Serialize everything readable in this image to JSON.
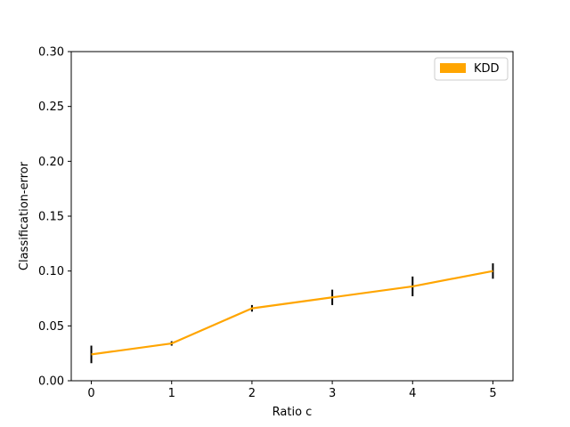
{
  "chart_data": {
    "type": "line",
    "title": "",
    "xlabel": "Ratio c",
    "ylabel": "Classification-error",
    "xlim": [
      -0.25,
      5.25
    ],
    "ylim": [
      0,
      0.3
    ],
    "x_ticks": [
      "0",
      "1",
      "2",
      "3",
      "4",
      "5"
    ],
    "y_ticks": [
      "0.00",
      "0.05",
      "0.10",
      "0.15",
      "0.20",
      "0.25",
      "0.30"
    ],
    "grid": false,
    "legend_position": "top-right",
    "series": [
      {
        "name": "KDD",
        "color": "#ffa500",
        "x": [
          0,
          1,
          2,
          3,
          4,
          5
        ],
        "y": [
          0.024,
          0.034,
          0.066,
          0.076,
          0.086,
          0.1
        ],
        "error": [
          0.008,
          0.002,
          0.003,
          0.007,
          0.009,
          0.007
        ]
      }
    ]
  }
}
